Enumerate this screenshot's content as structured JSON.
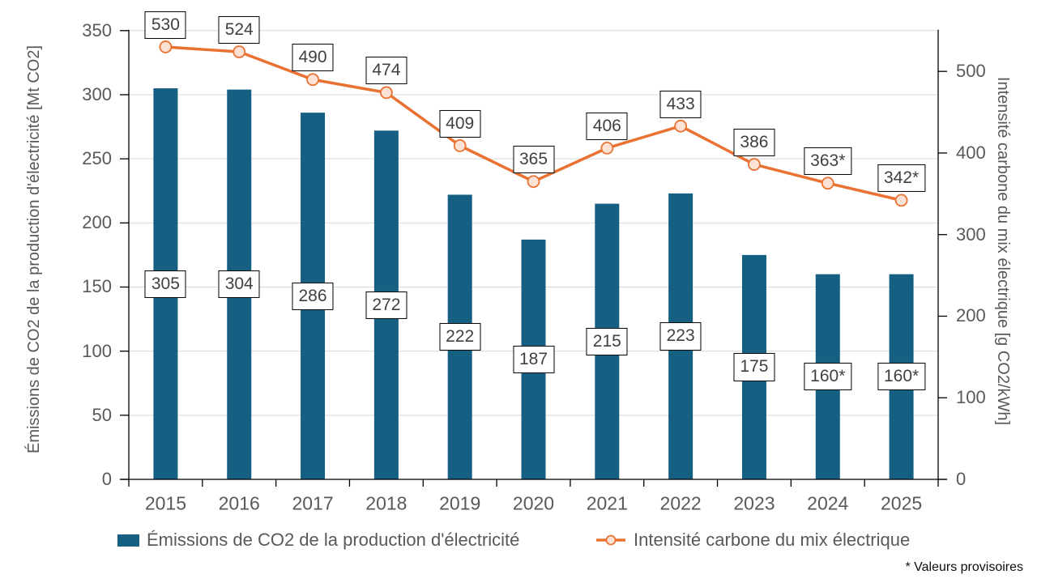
{
  "chart_data": {
    "type": "combo",
    "title": "",
    "categories": [
      "2015",
      "2016",
      "2017",
      "2018",
      "2019",
      "2020",
      "2021",
      "2022",
      "2023",
      "2024",
      "2025"
    ],
    "series": [
      {
        "name": "Émissions de CO2 de la production d'électricité",
        "type": "bar",
        "axis": "left",
        "color": "#156082",
        "values": [
          305,
          304,
          286,
          272,
          222,
          187,
          215,
          223,
          175,
          160,
          160
        ],
        "labels": [
          "305",
          "304",
          "286",
          "272",
          "222",
          "187",
          "215",
          "223",
          "175",
          "160*",
          "160*"
        ]
      },
      {
        "name": "Intensité carbone du mix électrique",
        "type": "line",
        "axis": "right",
        "color": "#E97132",
        "marker_fill": "#FBE2D5",
        "values": [
          530,
          524,
          490,
          474,
          409,
          365,
          406,
          433,
          386,
          363,
          342
        ],
        "labels": [
          "530",
          "524",
          "490",
          "474",
          "409",
          "365",
          "406",
          "433",
          "386",
          "363*",
          "342*"
        ]
      }
    ],
    "left_axis": {
      "label": "Émissions de CO2 de la production d'électricité [Mt CO2]",
      "min": 0,
      "max": 350,
      "ticks": [
        0,
        50,
        100,
        150,
        200,
        250,
        300,
        350
      ]
    },
    "right_axis": {
      "label": "Intensité carbone du mix électrique [g CO2/kWh]",
      "min": 0,
      "max": 550,
      "ticks": [
        0,
        100,
        200,
        300,
        400,
        500
      ]
    },
    "grid": true,
    "legend_position": "bottom",
    "footnote": "* Valeurs provisoires",
    "colors": {
      "bar": "#156082",
      "line": "#E97132",
      "marker_fill": "#FBE2D5",
      "gridline": "#D9D9D9",
      "axis": "#000000",
      "tick_text": "#595959",
      "datalabel_text": "#404040",
      "datalabel_border": "#000000"
    }
  }
}
